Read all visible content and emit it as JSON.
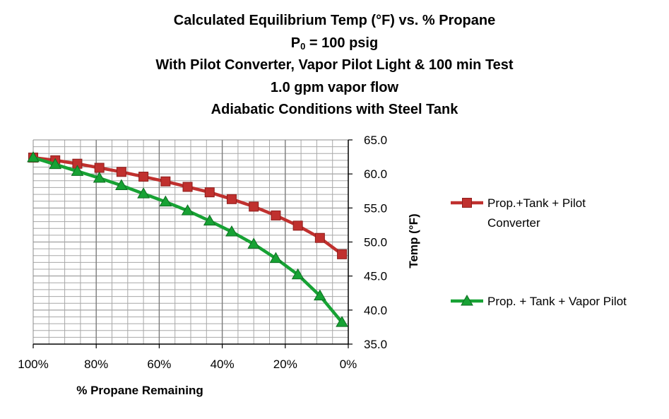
{
  "chart_data": {
    "type": "line",
    "title_lines": {
      "line1": "Calculated  Equilibrium Temp (°F) vs. % Propane",
      "line2_main": "P",
      "line2_sub": "0",
      "line2_rest": " = 100 psig",
      "line3": "With Pilot  Converter, Vapor Pilot Light & 100 min Test",
      "line4": "1.0 gpm vapor flow",
      "line5": "Adiabatic Conditions with Steel Tank"
    },
    "xlabel": "% Propane Remaining",
    "ylabel": "Temp (°F)",
    "xlim": [
      100,
      0
    ],
    "ylim": [
      35,
      65
    ],
    "x_ticks": [
      100,
      80,
      60,
      40,
      20,
      0
    ],
    "x_tick_labels": [
      "100%",
      "80%",
      "60%",
      "40%",
      "20%",
      "0%"
    ],
    "y_ticks": [
      35,
      40,
      45,
      50,
      55,
      60,
      65
    ],
    "y_tick_labels": [
      "35.0",
      "40.0",
      "45.0",
      "50.0",
      "55.0",
      "60.0",
      "65.0"
    ],
    "grid": true,
    "legend_position": "right",
    "series": [
      {
        "name": "Prop.+Tank + Pilot Converter",
        "legend_lines": [
          "Prop.+Tank + Pilot",
          "Converter"
        ],
        "color": "#c0302e",
        "marker": "square",
        "x": [
          100,
          93,
          86,
          79,
          72,
          65,
          58,
          51,
          44,
          37,
          30,
          23,
          16,
          9,
          2
        ],
        "y": [
          62.4,
          62.0,
          61.5,
          60.9,
          60.3,
          59.6,
          58.9,
          58.1,
          57.3,
          56.3,
          55.2,
          53.9,
          52.4,
          50.6,
          48.2
        ]
      },
      {
        "name": "Prop. + Tank + Vapor Pilot",
        "legend_lines": [
          "Prop. + Tank + Vapor  Pilot"
        ],
        "color": "#17a234",
        "marker": "triangle",
        "x": [
          100,
          93,
          86,
          79,
          72,
          65,
          58,
          51,
          44,
          37,
          30,
          23,
          16,
          9,
          2
        ],
        "y": [
          62.4,
          61.4,
          60.4,
          59.4,
          58.3,
          57.1,
          55.9,
          54.6,
          53.1,
          51.5,
          49.7,
          47.6,
          45.2,
          42.1,
          38.2
        ]
      }
    ]
  }
}
